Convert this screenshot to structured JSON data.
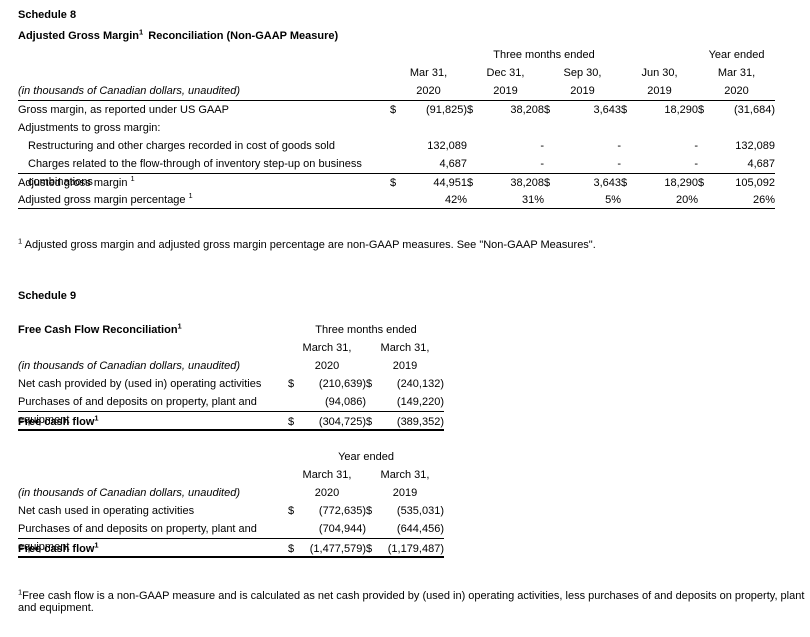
{
  "currency": "$",
  "schedule8": {
    "heading": "Schedule 8",
    "title_main": "Adjusted Gross Margin",
    "title_sup": "1",
    "title_rest": " Reconciliation (Non-GAAP Measure)",
    "span_quarters": "Three months ended",
    "span_year": "Year ended",
    "note": "(in thousands of Canadian dollars, unaudited)",
    "columns": [
      {
        "line1": "Mar 31,",
        "line2": "2020"
      },
      {
        "line1": "Dec 31,",
        "line2": "2019"
      },
      {
        "line1": "Sep 30,",
        "line2": "2019"
      },
      {
        "line1": "Jun 30,",
        "line2": "2019"
      },
      {
        "line1": "Mar 31,",
        "line2": "2020"
      }
    ],
    "rows": [
      {
        "label": "Gross margin, as reported under US GAAP",
        "values": [
          "(91,825)",
          "38,208",
          "3,643",
          "18,290",
          "(31,684)"
        ]
      },
      {
        "label": "Adjustments to gross margin:"
      },
      {
        "label": "Restructuring and other charges recorded in cost of goods sold",
        "values": [
          "132,089",
          "-",
          "-",
          "-",
          "132,089"
        ]
      },
      {
        "label": "Charges related to the flow-through of inventory step-up on business combinations",
        "values": [
          "4,687",
          "-",
          "-",
          "-",
          "4,687"
        ]
      },
      {
        "label": "Adjusted gross margin",
        "sup": "1",
        "values": [
          "44,951",
          "38,208",
          "3,643",
          "18,290",
          "105,092"
        ]
      },
      {
        "label": "Adjusted gross margin percentage",
        "sup": "1",
        "values": [
          "42%",
          "31%",
          "5%",
          "20%",
          "26%"
        ]
      }
    ],
    "footnote_sup": "1",
    "footnote": " Adjusted gross margin and adjusted gross margin percentage are non-GAAP measures. See \"Non-GAAP Measures\"."
  },
  "schedule9": {
    "heading": "Schedule 9",
    "title_main": "Free Cash Flow Reconciliation",
    "title_sup": "1",
    "note": "(in thousands of Canadian dollars, unaudited)",
    "table1": {
      "span": "Three months ended",
      "columns": [
        {
          "line1": "March 31,",
          "line2": "2020"
        },
        {
          "line1": "March 31,",
          "line2": "2019"
        }
      ],
      "rows": [
        {
          "label": "Net cash provided by (used in) operating activities",
          "values": [
            "(210,639)",
            "(240,132)"
          ]
        },
        {
          "label": "Purchases of and deposits on property, plant and equipment",
          "values": [
            "(94,086)",
            "(149,220)"
          ]
        },
        {
          "label": "Free cash flow",
          "sup": "1",
          "values": [
            "(304,725)",
            "(389,352)"
          ]
        }
      ]
    },
    "table2": {
      "span": "Year ended",
      "columns": [
        {
          "line1": "March 31,",
          "line2": "2020"
        },
        {
          "line1": "March 31,",
          "line2": "2019"
        }
      ],
      "rows": [
        {
          "label": "Net cash used in operating activities",
          "values": [
            "(772,635)",
            "(535,031)"
          ]
        },
        {
          "label": "Purchases of and deposits on property, plant and equipment",
          "values": [
            "(704,944)",
            "(644,456)"
          ]
        },
        {
          "label": "Free cash flow",
          "sup": "1",
          "values": [
            "(1,477,579)",
            "(1,179,487)"
          ]
        }
      ]
    },
    "footnote_sup": "1",
    "footnote": "Free cash flow is a non-GAAP measure and is calculated as net cash provided by (used in) operating activities, less purchases of and deposits on property, plant and equipment."
  }
}
